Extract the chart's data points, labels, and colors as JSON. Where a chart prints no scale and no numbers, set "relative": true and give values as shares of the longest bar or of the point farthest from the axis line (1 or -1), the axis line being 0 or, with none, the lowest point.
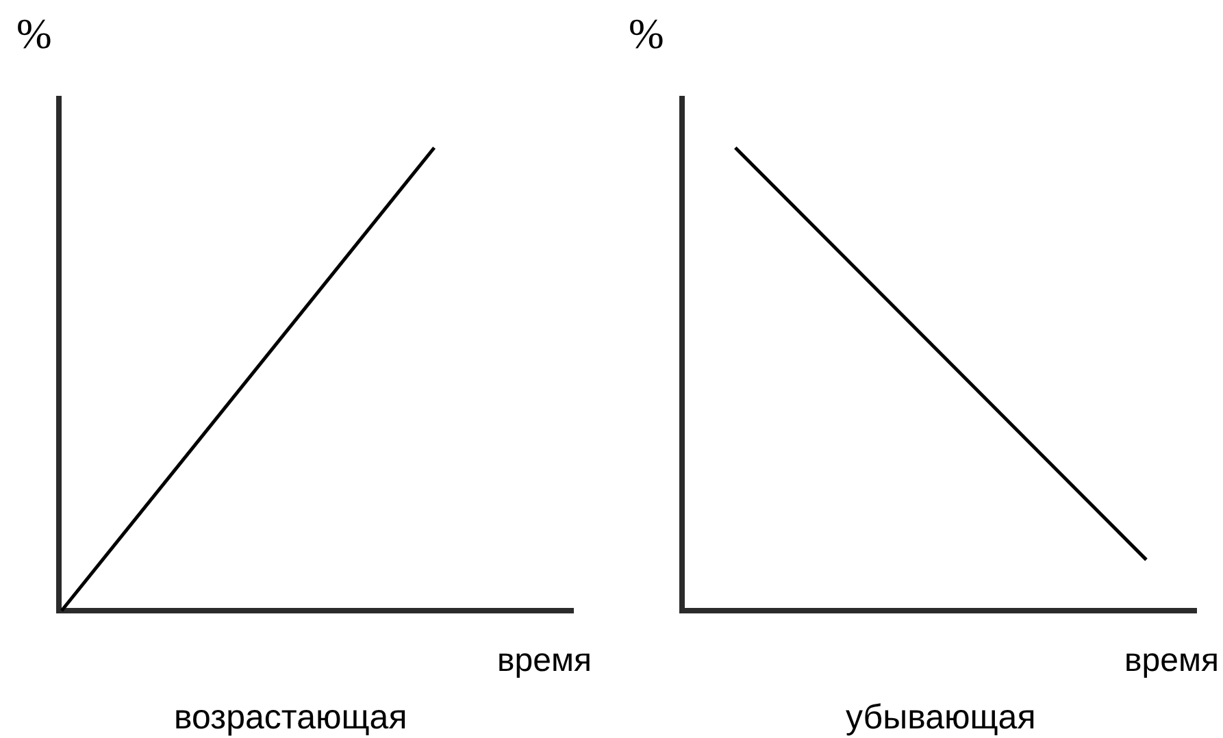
{
  "chart_data": [
    {
      "type": "line",
      "title": "возрастающая",
      "xlabel": "время",
      "ylabel": "%",
      "relative": true,
      "categories": [
        null,
        null
      ],
      "series": [
        {
          "color": "#000000",
          "values": [
            0,
            1
          ]
        }
      ]
    },
    {
      "type": "line",
      "title": "убывающая",
      "xlabel": "время",
      "ylabel": "%",
      "relative": true,
      "categories": [
        null,
        null
      ],
      "series": [
        {
          "color": "#000000",
          "values": [
            1,
            0.11
          ]
        }
      ]
    }
  ]
}
